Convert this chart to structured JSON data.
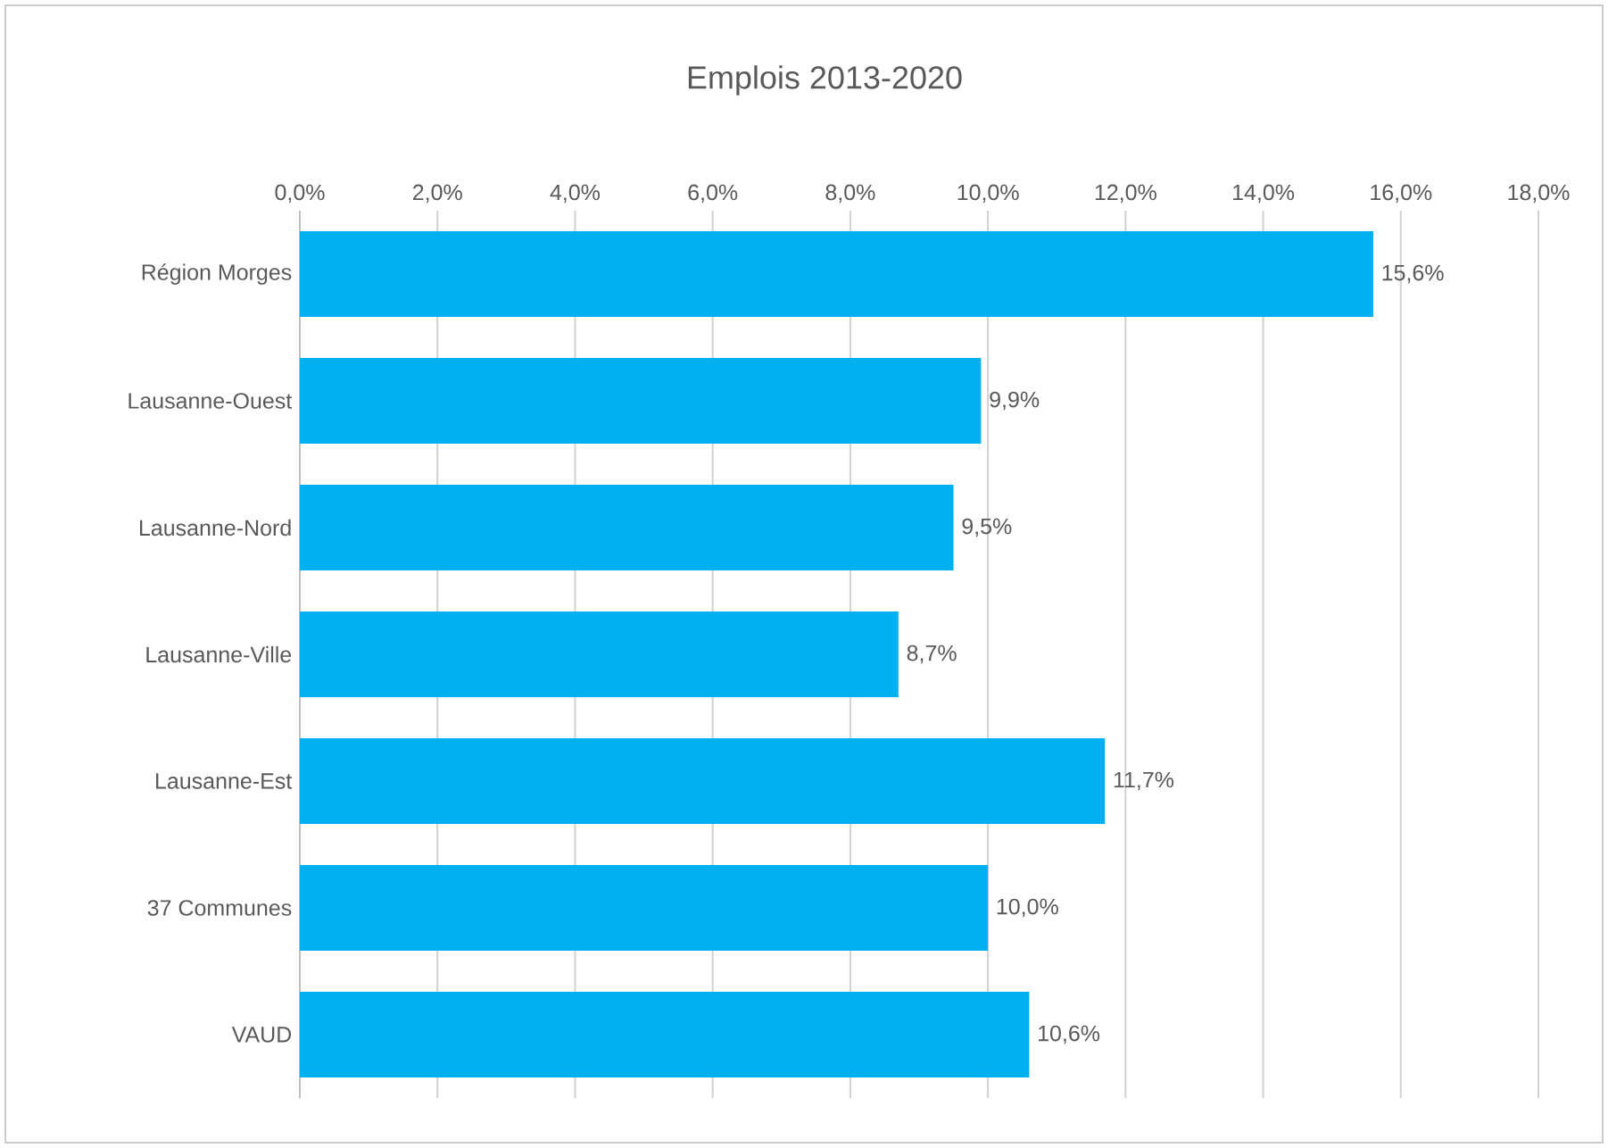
{
  "chart_data": {
    "type": "bar",
    "orientation": "horizontal",
    "title": "Emplois 2013-2020",
    "categories": [
      "Région Morges",
      "Lausanne-Ouest",
      "Lausanne-Nord",
      "Lausanne-Ville",
      "Lausanne-Est",
      "37 Communes",
      "VAUD"
    ],
    "values": [
      15.6,
      9.9,
      9.5,
      8.7,
      11.7,
      10.0,
      10.6
    ],
    "value_labels": [
      "15,6%",
      "9,9%",
      "9,5%",
      "8,7%",
      "11,7%",
      "10,0%",
      "10,6%"
    ],
    "color": "#00b0f0",
    "xlim": [
      0,
      18
    ],
    "xticks": [
      {
        "value": 0,
        "label": "0,0%"
      },
      {
        "value": 2,
        "label": "2,0%"
      },
      {
        "value": 4,
        "label": "4,0%"
      },
      {
        "value": 6,
        "label": "6,0%"
      },
      {
        "value": 8,
        "label": "8,0%"
      },
      {
        "value": 10,
        "label": "10,0%"
      },
      {
        "value": 12,
        "label": "12,0%"
      },
      {
        "value": 14,
        "label": "14,0%"
      },
      {
        "value": 16,
        "label": "16,0%"
      },
      {
        "value": 18,
        "label": "18,0%"
      }
    ],
    "grid": "x"
  }
}
